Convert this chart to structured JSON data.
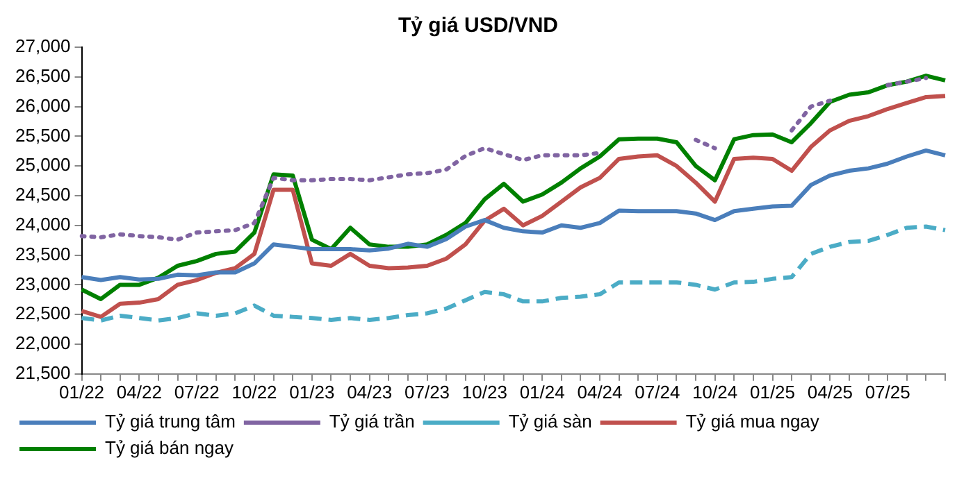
{
  "chart_data": {
    "type": "line",
    "title": "Tỷ giá USD/VND",
    "categories": [
      "01/22",
      null,
      null,
      "04/22",
      null,
      null,
      "07/22",
      null,
      null,
      "10/22",
      null,
      null,
      "01/23",
      null,
      null,
      "04/23",
      null,
      null,
      "07/23",
      null,
      null,
      "10/23",
      null,
      null,
      "01/24",
      null,
      null,
      "04/24",
      null,
      null,
      "07/24",
      null,
      null,
      "10/24",
      null,
      null,
      "01/25",
      null,
      null,
      "04/25",
      null,
      null,
      "07/25",
      null,
      null,
      null
    ],
    "series": [
      {
        "name": "Tỷ giá trung tâm",
        "color": "#4a7ebb",
        "line_style": "solid",
        "values": [
          23130,
          23080,
          23130,
          23090,
          23100,
          23170,
          23160,
          23210,
          23210,
          23360,
          23680,
          23640,
          23600,
          23600,
          23600,
          23580,
          23610,
          23690,
          23640,
          23770,
          23980,
          24090,
          23960,
          23900,
          23880,
          24000,
          23960,
          24040,
          24250,
          24240,
          24240,
          24240,
          24200,
          24090,
          24240,
          24280,
          24320,
          24330,
          24680,
          24840,
          24920,
          24960,
          25040,
          25160,
          25260,
          25180
        ]
      },
      {
        "name": "Tỷ giá trần",
        "color": "#8064a2",
        "line_style": "dotted",
        "values": [
          23820,
          23800,
          23850,
          23820,
          23800,
          23760,
          23880,
          23900,
          23920,
          24040,
          24800,
          24760,
          24760,
          24780,
          24780,
          24760,
          24810,
          24860,
          24880,
          24940,
          25170,
          25300,
          25200,
          25100,
          25180,
          25180,
          25180,
          25220,
          null,
          null,
          null,
          null,
          25440,
          25300,
          null,
          null,
          null,
          25600,
          26000,
          26100,
          null,
          null,
          26360,
          26420,
          26480,
          null
        ]
      },
      {
        "name": "Tỷ giá sàn",
        "color": "#4bacc6",
        "line_style": "dashed",
        "values": [
          22440,
          22400,
          22480,
          22440,
          22400,
          22440,
          22520,
          22480,
          22520,
          22650,
          22480,
          22460,
          22440,
          22410,
          22440,
          22410,
          22440,
          22490,
          22520,
          22600,
          22740,
          22880,
          22840,
          22720,
          22720,
          22780,
          22800,
          22840,
          23040,
          23040,
          23040,
          23040,
          23000,
          22920,
          23040,
          23050,
          23100,
          23130,
          23520,
          23640,
          23720,
          23740,
          23840,
          23960,
          23980,
          23920
        ]
      },
      {
        "name": "Tỷ giá mua ngay",
        "color": "#c0504d",
        "line_style": "solid",
        "values": [
          22560,
          22460,
          22680,
          22700,
          22760,
          23000,
          23080,
          23200,
          23280,
          23520,
          24600,
          24600,
          23360,
          23320,
          23520,
          23320,
          23280,
          23290,
          23320,
          23440,
          23680,
          24080,
          24280,
          24000,
          24160,
          24400,
          24640,
          24800,
          25120,
          25160,
          25180,
          25000,
          24720,
          24400,
          25120,
          25140,
          25120,
          24920,
          25320,
          25600,
          25760,
          25840,
          25960,
          26060,
          26160,
          26180
        ]
      },
      {
        "name": "Tỷ giá bán ngay",
        "color": "#008000",
        "line_style": "solid",
        "values": [
          22920,
          22760,
          23000,
          23000,
          23120,
          23320,
          23400,
          23520,
          23560,
          23880,
          24860,
          24840,
          23760,
          23600,
          23960,
          23680,
          23640,
          23640,
          23680,
          23840,
          24040,
          24440,
          24700,
          24400,
          24520,
          24720,
          24960,
          25160,
          25450,
          25460,
          25460,
          25400,
          25000,
          24760,
          25450,
          25520,
          25530,
          25400,
          25720,
          26080,
          26200,
          26240,
          26360,
          26420,
          26520,
          26440
        ]
      }
    ],
    "ylim": [
      21500,
      27000
    ],
    "yticks": [
      {
        "value": 21500,
        "label": "21,500"
      },
      {
        "value": 22000,
        "label": "22,000"
      },
      {
        "value": 22500,
        "label": "22,500"
      },
      {
        "value": 23000,
        "label": "23,000"
      },
      {
        "value": 23500,
        "label": "23,500"
      },
      {
        "value": 24000,
        "label": "24,000"
      },
      {
        "value": 24500,
        "label": "24,500"
      },
      {
        "value": 25000,
        "label": "25,000"
      },
      {
        "value": 25500,
        "label": "25,500"
      },
      {
        "value": 26000,
        "label": "26,000"
      },
      {
        "value": 26500,
        "label": "26,500"
      },
      {
        "value": 27000,
        "label": "27,000"
      }
    ],
    "grid": false,
    "legend": "bottom",
    "marker": "none"
  }
}
